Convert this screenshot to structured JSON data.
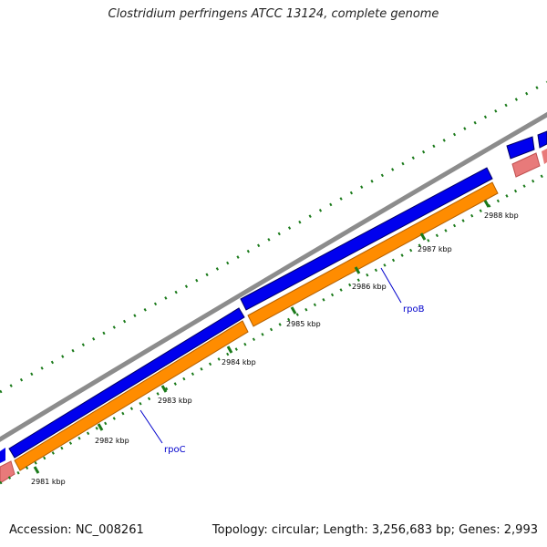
{
  "title": "Clostridium perfringens ATCC 13124, complete genome",
  "accession": "Accession: NC_008261",
  "summary": "Topology: circular; Length: 3,256,683 bp; Genes: 2,993",
  "kbp_labels": [
    "2981 kbp",
    "2982 kbp",
    "2983 kbp",
    "2984 kbp",
    "2985 kbp",
    "2986 kbp",
    "2987 kbp",
    "2988 kbp"
  ],
  "gene_labels": [
    "rpoB",
    "rpoC"
  ],
  "colors": {
    "backbone": "#8c8c8c",
    "forward_cds": "#0000ee",
    "reverse_cds": "#ff8c00",
    "rna": "#e87a7a",
    "ticks": "#1a7a1a",
    "gene_label": "#0000cc"
  }
}
